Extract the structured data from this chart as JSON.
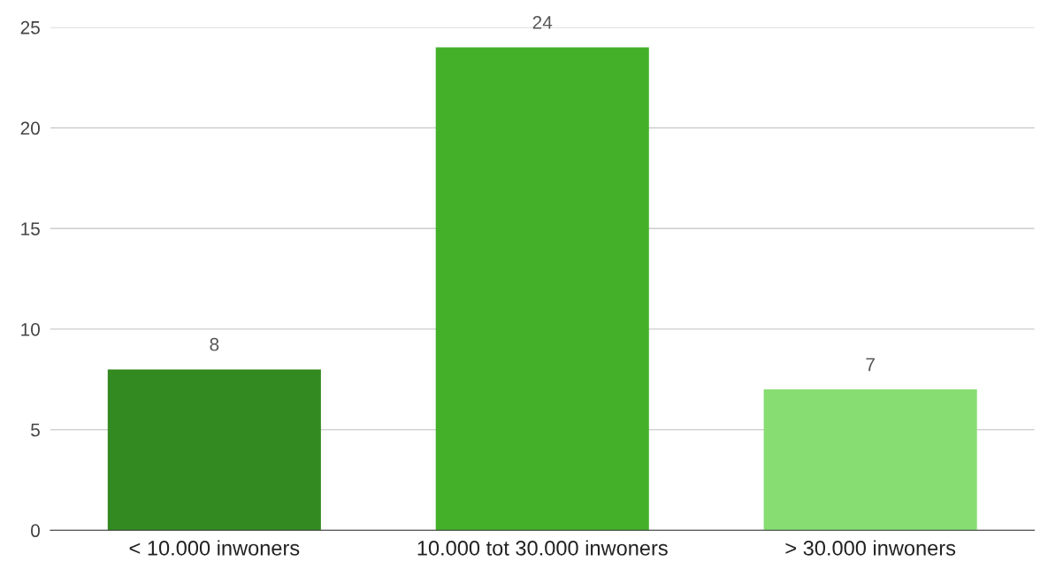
{
  "chart_data": {
    "type": "bar",
    "categories": [
      "< 10.000 inwoners",
      "10.000 tot 30.000 inwoners",
      "> 30.000 inwoners"
    ],
    "values": [
      8,
      24,
      7
    ],
    "colors": [
      "#338a20",
      "#44b02a",
      "#87dd72"
    ],
    "ylim": [
      0,
      25
    ],
    "yticks": [
      0,
      5,
      10,
      15,
      20,
      25
    ],
    "grid": "y",
    "data_labels": true,
    "legend": false
  }
}
